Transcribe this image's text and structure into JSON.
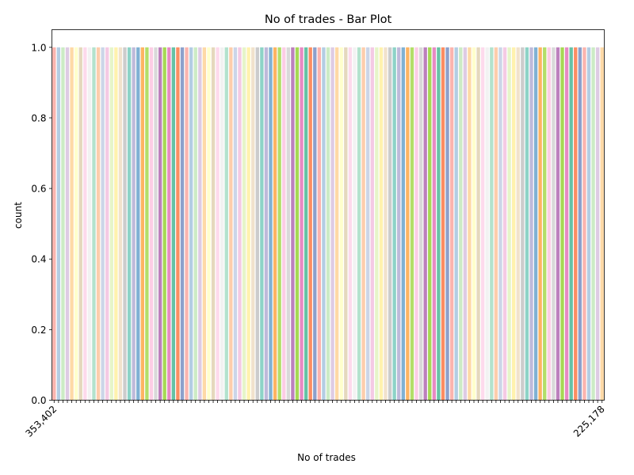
{
  "chart_data": {
    "type": "bar",
    "title": "No of trades  - Bar Plot",
    "xlabel": "No of trades",
    "ylabel": "count",
    "ylim": [
      0,
      1.05
    ],
    "yticks": [
      0.0,
      0.2,
      0.4,
      0.6,
      0.8,
      1.0
    ],
    "ytick_labels": [
      "0.0",
      "0.2",
      "0.4",
      "0.6",
      "0.8",
      "1.0"
    ],
    "grid": false,
    "legend": "none",
    "bar_count": 125,
    "bar_value": 1,
    "visible_x_labels": [
      "353,402",
      "225,178"
    ],
    "palette": [
      "#fbb4ae",
      "#b3cde3",
      "#ccebc5",
      "#decbe4",
      "#fed9a6",
      "#ffffcc",
      "#e5d8bd",
      "#fddaec",
      "#f2f2f2",
      "#b3e2cd",
      "#fdcdac",
      "#cbd5e8",
      "#f4cae4",
      "#e6f5c9",
      "#fff2ae",
      "#f1e2cc",
      "#cccccc",
      "#8dd3c7",
      "#bebada",
      "#80b1d3",
      "#fdb462",
      "#b3de69",
      "#fccde5",
      "#d9d9d9",
      "#bc80bd",
      "#a6d854",
      "#e78ac3",
      "#66c2a5",
      "#fc8d62",
      "#8da0cb"
    ]
  }
}
